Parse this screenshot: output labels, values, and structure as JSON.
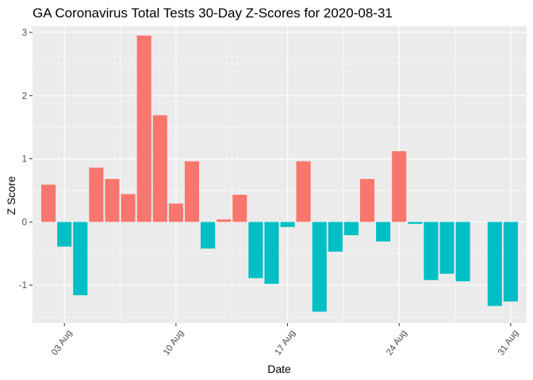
{
  "chart_data": {
    "type": "bar",
    "title": "GA Coronavirus Total Tests 30-Day Z-Scores for 2020-08-31",
    "xlabel": "Date",
    "ylabel": "Z Score",
    "x_dates": [
      "2020-08-02",
      "2020-08-03",
      "2020-08-04",
      "2020-08-05",
      "2020-08-06",
      "2020-08-07",
      "2020-08-08",
      "2020-08-09",
      "2020-08-10",
      "2020-08-11",
      "2020-08-12",
      "2020-08-13",
      "2020-08-14",
      "2020-08-15",
      "2020-08-16",
      "2020-08-17",
      "2020-08-18",
      "2020-08-19",
      "2020-08-20",
      "2020-08-21",
      "2020-08-22",
      "2020-08-23",
      "2020-08-24",
      "2020-08-25",
      "2020-08-26",
      "2020-08-27",
      "2020-08-28",
      "2020-08-29",
      "2020-08-30",
      "2020-08-31"
    ],
    "values": [
      0.59,
      -0.39,
      -1.16,
      0.86,
      0.68,
      0.44,
      2.95,
      1.69,
      0.29,
      0.96,
      -0.42,
      0.04,
      0.43,
      -0.89,
      -0.98,
      -0.08,
      0.96,
      -1.42,
      -0.47,
      -0.21,
      0.68,
      -0.31,
      1.12,
      -0.03,
      -0.92,
      -0.82,
      -0.94,
      0.0,
      -1.33,
      -1.26
    ],
    "positive_color": "#F8766D",
    "negative_color": "#00BFC4",
    "panel_background": "#EBEBEB",
    "ylim": [
      -1.6,
      3.1
    ],
    "yticks": [
      -1,
      0,
      1,
      2,
      3
    ],
    "ytick_labels": [
      "-1",
      "0",
      "1",
      "2",
      "3"
    ],
    "xtick_dates": [
      "2020-08-03",
      "2020-08-10",
      "2020-08-17",
      "2020-08-24",
      "2020-08-31"
    ],
    "xtick_labels": [
      "03 Aug",
      "10 Aug",
      "17 Aug",
      "24 Aug",
      "31 Aug"
    ],
    "xlim": [
      "2020-08-01",
      "2020-09-01"
    ],
    "grid": true,
    "legend": "none"
  }
}
